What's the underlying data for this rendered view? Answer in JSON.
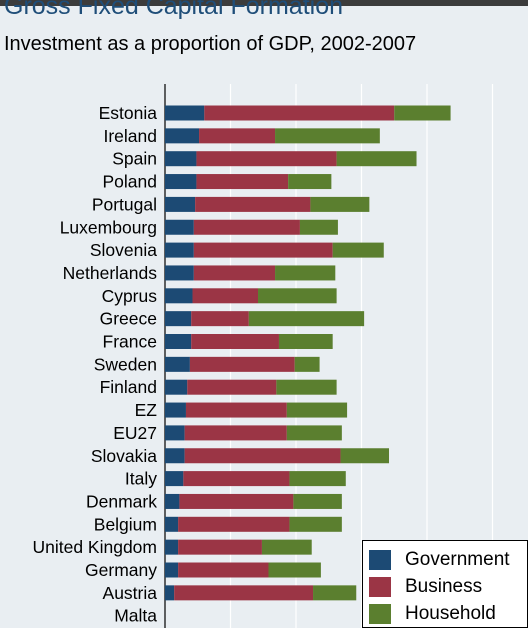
{
  "title": "Gross Fixed Capital Formation",
  "subtitle": "Investment as a proportion of GDP, 2002-2007",
  "chart_data": {
    "type": "bar",
    "orientation": "horizontal",
    "stacked": true,
    "categories": [
      "Estonia",
      "Ireland",
      "Spain",
      "Poland",
      "Portugal",
      "Luxembourg",
      "Slovenia",
      "Netherlands",
      "Cyprus",
      "Greece",
      "France",
      "Sweden",
      "Finland",
      "EZ",
      "EU27",
      "Slovakia",
      "Italy",
      "Denmark",
      "Belgium",
      "United Kingdom",
      "Germany",
      "Austria",
      "Malta"
    ],
    "series": [
      {
        "name": "Government",
        "color": "#1c4a74",
        "values": [
          3.0,
          2.6,
          2.4,
          2.4,
          2.3,
          2.2,
          2.2,
          2.2,
          2.1,
          2.0,
          2.0,
          1.9,
          1.7,
          1.6,
          1.5,
          1.5,
          1.4,
          1.1,
          1.0,
          1.0,
          1.0,
          0.7,
          0
        ]
      },
      {
        "name": "Business",
        "color": "#9b3545",
        "values": [
          14.5,
          5.8,
          10.7,
          7.0,
          8.8,
          8.1,
          10.6,
          6.2,
          5.0,
          4.4,
          6.7,
          8.0,
          6.8,
          7.7,
          7.8,
          11.9,
          8.1,
          8.7,
          8.5,
          6.4,
          6.9,
          10.6,
          0
        ]
      },
      {
        "name": "Household",
        "color": "#5b7f2f",
        "values": [
          4.3,
          8.0,
          6.1,
          3.3,
          4.5,
          2.9,
          3.9,
          4.6,
          6.0,
          8.8,
          4.1,
          1.9,
          4.6,
          4.6,
          4.2,
          3.7,
          4.3,
          3.7,
          4.0,
          3.8,
          4.0,
          3.3,
          0
        ]
      }
    ],
    "xlim": [
      0,
      28
    ],
    "grid": true,
    "legend": "bottom-right"
  }
}
